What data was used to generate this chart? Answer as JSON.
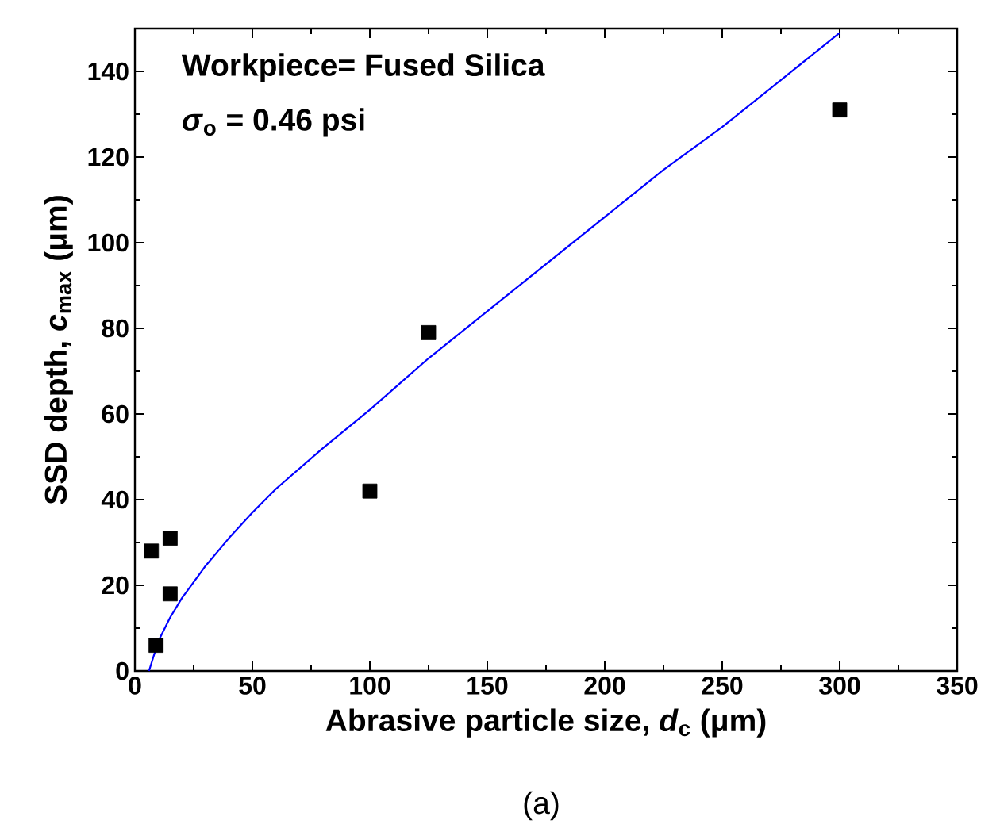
{
  "chart_data": {
    "type": "scatter",
    "xlabel": "Abrasive particle size, *d*$_{c}$ (μm)",
    "ylabel": "SSD depth, *c*$_{max}$ (μm)",
    "annotations": [
      "Workpiece= Fused Silica",
      "*σ*$_{o}$ = 0.46 psi",
      "(a)"
    ],
    "xlim": [
      0,
      350
    ],
    "ylim": [
      0,
      150
    ],
    "xticks": [
      0,
      50,
      100,
      150,
      200,
      250,
      300,
      350
    ],
    "yticks": [
      0,
      20,
      40,
      60,
      80,
      100,
      120,
      140
    ],
    "marker": "square",
    "grid": false,
    "series": [
      {
        "color": "#000000",
        "x": [
          7,
          9,
          15,
          15,
          100,
          125,
          300
        ],
        "values": [
          28,
          6,
          31,
          18,
          42,
          79,
          131
        ]
      },
      {
        "type": "line",
        "color": "#0000ff",
        "marker": "none",
        "line_style": "solid",
        "x": [
          6,
          10,
          15,
          20,
          30,
          40,
          50,
          60,
          80,
          100,
          125,
          150,
          175,
          200,
          225,
          250,
          275,
          300
        ],
        "values": [
          0,
          7,
          12.5,
          17,
          24.5,
          31,
          37,
          42.5,
          52,
          61,
          73,
          84,
          95,
          106,
          117,
          127,
          138,
          149
        ]
      }
    ]
  }
}
